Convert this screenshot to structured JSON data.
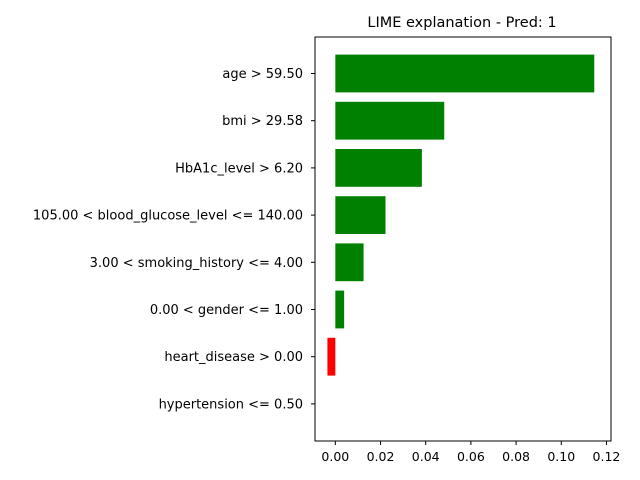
{
  "chart_data": {
    "type": "bar",
    "orientation": "horizontal",
    "title": "LIME explanation - Pred: 1",
    "xlabel": "",
    "ylabel": "",
    "xlim": [
      -0.009,
      0.122
    ],
    "x_ticks": [
      0.0,
      0.02,
      0.04,
      0.06,
      0.08,
      0.1,
      0.12
    ],
    "x_tick_labels": [
      "0.00",
      "0.02",
      "0.04",
      "0.06",
      "0.08",
      "0.10",
      "0.12"
    ],
    "grid": false,
    "legend": "none",
    "categories": [
      "age > 59.50",
      "bmi > 29.58",
      "HbA1c_level > 6.20",
      "105.00 < blood_glucose_level <= 140.00",
      "3.00 < smoking_history <= 4.00",
      "0.00 < gender <= 1.00",
      "heart_disease > 0.00",
      "hypertension <= 0.50"
    ],
    "values": [
      0.1146,
      0.0482,
      0.0383,
      0.0222,
      0.0125,
      0.0039,
      -0.0035,
      0.0
    ],
    "colors": {
      "positive": "#008000",
      "negative": "#ff0000"
    }
  }
}
